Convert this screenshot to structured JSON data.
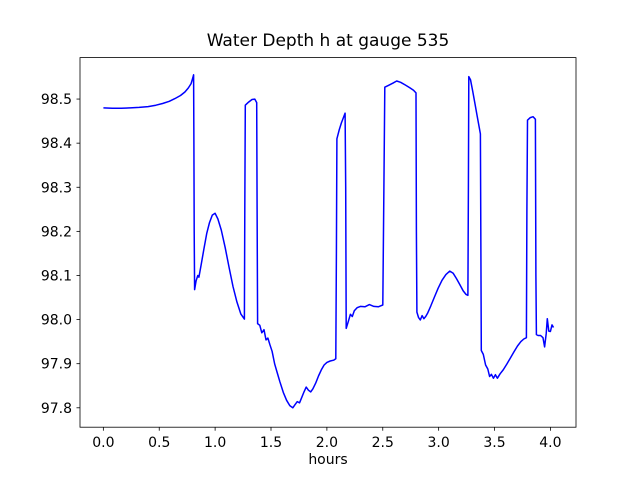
{
  "figure": {
    "background_color": "#ffffff",
    "axes_edge_color": "#000000"
  },
  "chart_data": {
    "type": "line",
    "title": "Water Depth h at gauge 535",
    "xlabel": "hours",
    "ylabel": "",
    "grid": false,
    "legend": null,
    "line_color": "#0000ff",
    "line_width": 1.5,
    "xlim": [
      -0.209,
      4.229
    ],
    "ylim": [
      97.756,
      98.594
    ],
    "xticks": [
      0.0,
      0.5,
      1.0,
      1.5,
      2.0,
      2.5,
      3.0,
      3.5,
      4.0
    ],
    "yticks": [
      97.8,
      97.9,
      98.0,
      98.1,
      98.2,
      98.3,
      98.4,
      98.5
    ],
    "series": [
      {
        "name": "h",
        "points": [
          [
            0.0,
            98.48
          ],
          [
            0.08,
            98.479
          ],
          [
            0.16,
            98.479
          ],
          [
            0.24,
            98.48
          ],
          [
            0.32,
            98.481
          ],
          [
            0.4,
            98.483
          ],
          [
            0.47,
            98.486
          ],
          [
            0.53,
            98.49
          ],
          [
            0.59,
            98.495
          ],
          [
            0.64,
            98.501
          ],
          [
            0.69,
            98.508
          ],
          [
            0.73,
            98.516
          ],
          [
            0.76,
            98.525
          ],
          [
            0.785,
            98.535
          ],
          [
            0.8,
            98.548
          ],
          [
            0.807,
            98.555
          ],
          [
            0.81,
            98.4
          ],
          [
            0.813,
            98.2
          ],
          [
            0.816,
            98.068
          ],
          [
            0.83,
            98.088
          ],
          [
            0.845,
            98.1
          ],
          [
            0.855,
            98.096
          ],
          [
            0.875,
            98.125
          ],
          [
            0.9,
            98.16
          ],
          [
            0.925,
            98.195
          ],
          [
            0.95,
            98.22
          ],
          [
            0.975,
            98.237
          ],
          [
            1.0,
            98.241
          ],
          [
            1.025,
            98.228
          ],
          [
            1.055,
            98.203
          ],
          [
            1.09,
            98.163
          ],
          [
            1.125,
            98.118
          ],
          [
            1.16,
            98.075
          ],
          [
            1.195,
            98.04
          ],
          [
            1.23,
            98.013
          ],
          [
            1.262,
            98.001
          ],
          [
            1.266,
            98.25
          ],
          [
            1.27,
            98.486
          ],
          [
            1.3,
            98.493
          ],
          [
            1.33,
            98.499
          ],
          [
            1.355,
            98.5
          ],
          [
            1.372,
            98.492
          ],
          [
            1.376,
            98.25
          ],
          [
            1.38,
            97.991
          ],
          [
            1.4,
            97.987
          ],
          [
            1.418,
            97.97
          ],
          [
            1.437,
            97.977
          ],
          [
            1.455,
            97.954
          ],
          [
            1.472,
            97.958
          ],
          [
            1.49,
            97.943
          ],
          [
            1.51,
            97.928
          ],
          [
            1.533,
            97.899
          ],
          [
            1.556,
            97.879
          ],
          [
            1.58,
            97.859
          ],
          [
            1.61,
            97.835
          ],
          [
            1.64,
            97.817
          ],
          [
            1.668,
            97.805
          ],
          [
            1.695,
            97.8
          ],
          [
            1.715,
            97.807
          ],
          [
            1.735,
            97.814
          ],
          [
            1.755,
            97.811
          ],
          [
            1.775,
            97.823
          ],
          [
            1.795,
            97.836
          ],
          [
            1.815,
            97.847
          ],
          [
            1.835,
            97.84
          ],
          [
            1.855,
            97.836
          ],
          [
            1.875,
            97.843
          ],
          [
            1.9,
            97.856
          ],
          [
            1.925,
            97.872
          ],
          [
            1.95,
            97.886
          ],
          [
            1.975,
            97.897
          ],
          [
            2.0,
            97.903
          ],
          [
            2.03,
            97.906
          ],
          [
            2.06,
            97.908
          ],
          [
            2.08,
            97.911
          ],
          [
            2.085,
            98.15
          ],
          [
            2.09,
            98.41
          ],
          [
            2.11,
            98.43
          ],
          [
            2.13,
            98.446
          ],
          [
            2.15,
            98.459
          ],
          [
            2.163,
            98.468
          ],
          [
            2.168,
            98.3
          ],
          [
            2.173,
            97.98
          ],
          [
            2.19,
            97.994
          ],
          [
            2.21,
            98.012
          ],
          [
            2.227,
            98.007
          ],
          [
            2.245,
            98.02
          ],
          [
            2.27,
            98.027
          ],
          [
            2.3,
            98.03
          ],
          [
            2.34,
            98.029
          ],
          [
            2.38,
            98.034
          ],
          [
            2.42,
            98.03
          ],
          [
            2.46,
            98.029
          ],
          [
            2.5,
            98.033
          ],
          [
            2.51,
            98.3
          ],
          [
            2.518,
            98.527
          ],
          [
            2.55,
            98.531
          ],
          [
            2.59,
            98.536
          ],
          [
            2.625,
            98.541
          ],
          [
            2.66,
            98.538
          ],
          [
            2.7,
            98.532
          ],
          [
            2.74,
            98.526
          ],
          [
            2.775,
            98.52
          ],
          [
            2.797,
            98.514
          ],
          [
            2.801,
            98.2
          ],
          [
            2.805,
            98.017
          ],
          [
            2.82,
            98.005
          ],
          [
            2.836,
            97.999
          ],
          [
            2.852,
            98.009
          ],
          [
            2.868,
            98.002
          ],
          [
            2.884,
            98.007
          ],
          [
            2.9,
            98.014
          ],
          [
            2.93,
            98.031
          ],
          [
            2.962,
            98.051
          ],
          [
            2.995,
            98.071
          ],
          [
            3.03,
            98.089
          ],
          [
            3.065,
            98.102
          ],
          [
            3.1,
            98.11
          ],
          [
            3.13,
            98.105
          ],
          [
            3.16,
            98.093
          ],
          [
            3.19,
            98.079
          ],
          [
            3.22,
            98.065
          ],
          [
            3.245,
            98.057
          ],
          [
            3.262,
            98.055
          ],
          [
            3.266,
            98.3
          ],
          [
            3.27,
            98.551
          ],
          [
            3.285,
            98.544
          ],
          [
            3.305,
            98.518
          ],
          [
            3.325,
            98.489
          ],
          [
            3.345,
            98.461
          ],
          [
            3.363,
            98.436
          ],
          [
            3.374,
            98.421
          ],
          [
            3.378,
            98.15
          ],
          [
            3.382,
            97.93
          ],
          [
            3.4,
            97.921
          ],
          [
            3.42,
            97.897
          ],
          [
            3.44,
            97.888
          ],
          [
            3.456,
            97.871
          ],
          [
            3.472,
            97.876
          ],
          [
            3.49,
            97.867
          ],
          [
            3.508,
            97.875
          ],
          [
            3.526,
            97.867
          ],
          [
            3.55,
            97.877
          ],
          [
            3.578,
            97.886
          ],
          [
            3.61,
            97.899
          ],
          [
            3.642,
            97.913
          ],
          [
            3.674,
            97.927
          ],
          [
            3.706,
            97.94
          ],
          [
            3.736,
            97.95
          ],
          [
            3.762,
            97.956
          ],
          [
            3.785,
            97.959
          ],
          [
            3.79,
            98.25
          ],
          [
            3.795,
            98.452
          ],
          [
            3.82,
            98.458
          ],
          [
            3.845,
            98.46
          ],
          [
            3.866,
            98.454
          ],
          [
            3.87,
            98.1
          ],
          [
            3.875,
            97.966
          ],
          [
            3.89,
            97.964
          ],
          [
            3.912,
            97.964
          ],
          [
            3.934,
            97.959
          ],
          [
            3.948,
            97.938
          ],
          [
            3.962,
            97.968
          ],
          [
            3.972,
            98.002
          ],
          [
            3.986,
            97.974
          ],
          [
            4.0,
            97.973
          ],
          [
            4.014,
            97.988
          ],
          [
            4.028,
            97.982
          ]
        ]
      }
    ]
  }
}
